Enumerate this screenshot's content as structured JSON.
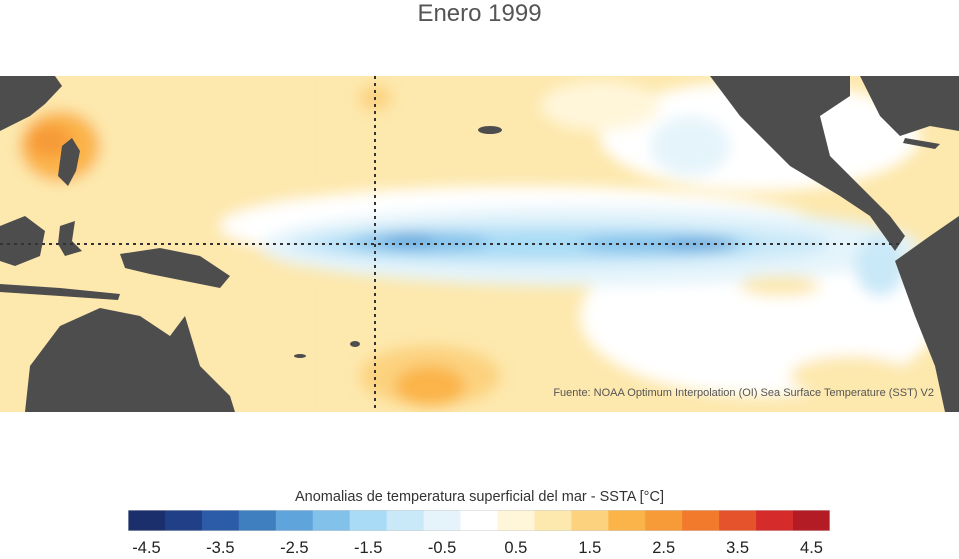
{
  "title": "Enero 1999",
  "source": "Fuente: NOAA Optimum Interpolation (OI) Sea Surface Temperature (SST) V2",
  "colorbar": {
    "title": "Anomalias de temperatura superficial del mar - SSTA  [°C]",
    "colors": [
      "#1a2f6b",
      "#213f86",
      "#2c5ca8",
      "#3f7fc0",
      "#5fa4db",
      "#82c1ea",
      "#a9dbf6",
      "#c9e8f8",
      "#e5f4fb",
      "#ffffff",
      "#fff6da",
      "#fde8ad",
      "#fcd27f",
      "#fbb449",
      "#f79a38",
      "#f27a2c",
      "#e4532b",
      "#d52b2b",
      "#b31c24"
    ],
    "ticks": [
      "-4.5",
      "-3.5",
      "-2.5",
      "-1.5",
      "-0.5",
      "0.5",
      "1.5",
      "2.5",
      "3.5",
      "4.5"
    ]
  },
  "chart_data": {
    "type": "heatmap",
    "title": "Enero 1999",
    "colorbar_label": "Anomalias de temperatura superficial del mar - SSTA  [°C]",
    "colorbar_ticks": [
      -4.5,
      -3.5,
      -2.5,
      -1.5,
      -0.5,
      0.5,
      1.5,
      2.5,
      3.5,
      4.5
    ],
    "reference_lines": [
      "equator",
      "date line"
    ]
  }
}
